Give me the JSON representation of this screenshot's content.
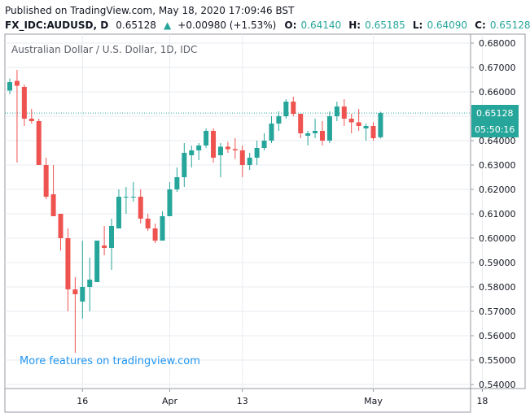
{
  "header": {
    "published": "Published on TradingView.com, May 18, 2020 17:09:46 BST",
    "symbol": "FX_IDC:AUDUSD, D",
    "last": "0.65128",
    "change_arrow": "▲",
    "change": "+0.00980 (+1.53%)",
    "open_label": "O:",
    "open": "0.64140",
    "high_label": "H:",
    "high": "0.65185",
    "low_label": "L:",
    "low": "0.64090",
    "close_label": "C:",
    "close": "0.65128"
  },
  "footer_link": "More features on tradingview.com",
  "price_tag": {
    "price": "0.65128",
    "countdown": "05:50:16"
  },
  "colors": {
    "up": "#26a69a",
    "down": "#ef5350",
    "grid": "#e8ebf0",
    "accent": "#2196f3"
  },
  "chart_data": {
    "type": "candlestick",
    "title": "Australian Dollar / U.S. Dollar, 1D, IDC",
    "ylim": [
      0.54,
      0.685
    ],
    "y_ticks": [
      "0.54000",
      "0.55000",
      "0.56000",
      "0.57000",
      "0.58000",
      "0.59000",
      "0.60000",
      "0.61000",
      "0.62000",
      "0.63000",
      "0.64000",
      "0.65000",
      "0.66000",
      "0.67000",
      "0.68000"
    ],
    "x_ticks": [
      {
        "label": "16",
        "index": 10
      },
      {
        "label": "Apr",
        "index": 22
      },
      {
        "label": "13",
        "index": 32
      },
      {
        "label": "May",
        "index": 50
      },
      {
        "label": "18",
        "index": 65
      }
    ],
    "last_price": 0.65128,
    "candles": [
      {
        "o": 0.6605,
        "h": 0.6655,
        "l": 0.659,
        "c": 0.664
      },
      {
        "o": 0.6645,
        "h": 0.669,
        "l": 0.631,
        "c": 0.6625
      },
      {
        "o": 0.662,
        "h": 0.663,
        "l": 0.646,
        "c": 0.649
      },
      {
        "o": 0.649,
        "h": 0.653,
        "l": 0.647,
        "c": 0.648
      },
      {
        "o": 0.648,
        "h": 0.649,
        "l": 0.63,
        "c": 0.63
      },
      {
        "o": 0.63,
        "h": 0.633,
        "l": 0.616,
        "c": 0.617
      },
      {
        "o": 0.618,
        "h": 0.63,
        "l": 0.609,
        "c": 0.609
      },
      {
        "o": 0.61,
        "h": 0.61,
        "l": 0.595,
        "c": 0.6
      },
      {
        "o": 0.6,
        "h": 0.604,
        "l": 0.57,
        "c": 0.579
      },
      {
        "o": 0.579,
        "h": 0.584,
        "l": 0.553,
        "c": 0.577
      },
      {
        "o": 0.574,
        "h": 0.599,
        "l": 0.567,
        "c": 0.58
      },
      {
        "o": 0.58,
        "h": 0.592,
        "l": 0.57,
        "c": 0.583
      },
      {
        "o": 0.582,
        "h": 0.599,
        "l": 0.582,
        "c": 0.599
      },
      {
        "o": 0.597,
        "h": 0.605,
        "l": 0.593,
        "c": 0.596
      },
      {
        "o": 0.596,
        "h": 0.608,
        "l": 0.587,
        "c": 0.605
      },
      {
        "o": 0.604,
        "h": 0.62,
        "l": 0.604,
        "c": 0.617
      },
      {
        "o": 0.617,
        "h": 0.621,
        "l": 0.61,
        "c": 0.617
      },
      {
        "o": 0.617,
        "h": 0.623,
        "l": 0.615,
        "c": 0.617
      },
      {
        "o": 0.617,
        "h": 0.62,
        "l": 0.606,
        "c": 0.608
      },
      {
        "o": 0.608,
        "h": 0.61,
        "l": 0.603,
        "c": 0.604
      },
      {
        "o": 0.604,
        "h": 0.606,
        "l": 0.598,
        "c": 0.599
      },
      {
        "o": 0.599,
        "h": 0.611,
        "l": 0.599,
        "c": 0.609
      },
      {
        "o": 0.609,
        "h": 0.623,
        "l": 0.609,
        "c": 0.62
      },
      {
        "o": 0.62,
        "h": 0.629,
        "l": 0.619,
        "c": 0.625
      },
      {
        "o": 0.625,
        "h": 0.639,
        "l": 0.621,
        "c": 0.635
      },
      {
        "o": 0.634,
        "h": 0.638,
        "l": 0.629,
        "c": 0.636
      },
      {
        "o": 0.636,
        "h": 0.639,
        "l": 0.632,
        "c": 0.638
      },
      {
        "o": 0.638,
        "h": 0.645,
        "l": 0.637,
        "c": 0.644
      },
      {
        "o": 0.644,
        "h": 0.645,
        "l": 0.631,
        "c": 0.633
      },
      {
        "o": 0.634,
        "h": 0.639,
        "l": 0.625,
        "c": 0.6375
      },
      {
        "o": 0.6375,
        "h": 0.6395,
        "l": 0.635,
        "c": 0.6365
      },
      {
        "o": 0.6365,
        "h": 0.641,
        "l": 0.6325,
        "c": 0.636
      },
      {
        "o": 0.636,
        "h": 0.638,
        "l": 0.625,
        "c": 0.63
      },
      {
        "o": 0.63,
        "h": 0.635,
        "l": 0.628,
        "c": 0.633
      },
      {
        "o": 0.633,
        "h": 0.64,
        "l": 0.63,
        "c": 0.637
      },
      {
        "o": 0.637,
        "h": 0.643,
        "l": 0.636,
        "c": 0.64
      },
      {
        "o": 0.64,
        "h": 0.65,
        "l": 0.639,
        "c": 0.647
      },
      {
        "o": 0.647,
        "h": 0.652,
        "l": 0.644,
        "c": 0.65
      },
      {
        "o": 0.65,
        "h": 0.657,
        "l": 0.649,
        "c": 0.656
      },
      {
        "o": 0.656,
        "h": 0.658,
        "l": 0.65,
        "c": 0.651
      },
      {
        "o": 0.651,
        "h": 0.651,
        "l": 0.641,
        "c": 0.643
      },
      {
        "o": 0.642,
        "h": 0.644,
        "l": 0.638,
        "c": 0.643
      },
      {
        "o": 0.643,
        "h": 0.649,
        "l": 0.641,
        "c": 0.644
      },
      {
        "o": 0.644,
        "h": 0.648,
        "l": 0.638,
        "c": 0.64
      },
      {
        "o": 0.64,
        "h": 0.652,
        "l": 0.639,
        "c": 0.65
      },
      {
        "o": 0.65,
        "h": 0.656,
        "l": 0.648,
        "c": 0.654
      },
      {
        "o": 0.654,
        "h": 0.657,
        "l": 0.646,
        "c": 0.649
      },
      {
        "o": 0.649,
        "h": 0.651,
        "l": 0.643,
        "c": 0.6475
      },
      {
        "o": 0.6475,
        "h": 0.653,
        "l": 0.644,
        "c": 0.646
      },
      {
        "o": 0.645,
        "h": 0.647,
        "l": 0.64,
        "c": 0.646
      },
      {
        "o": 0.646,
        "h": 0.6475,
        "l": 0.64,
        "c": 0.641
      },
      {
        "o": 0.6414,
        "h": 0.65185,
        "l": 0.6409,
        "c": 0.65128
      }
    ]
  }
}
